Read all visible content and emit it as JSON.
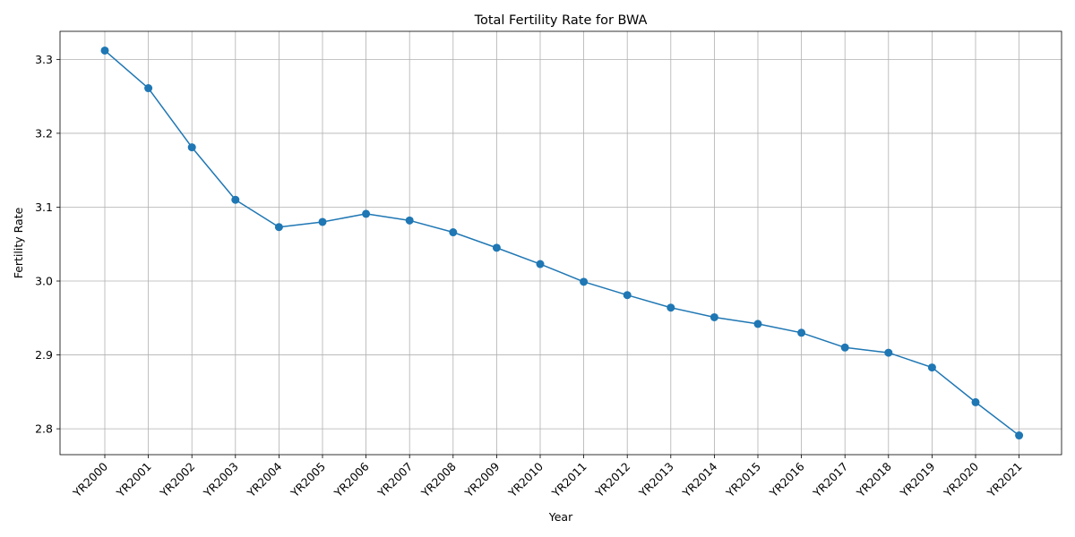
{
  "chart_data": {
    "type": "line",
    "title": "Total Fertility Rate for BWA",
    "xlabel": "Year",
    "ylabel": "Fertility Rate",
    "categories": [
      "YR2000",
      "YR2001",
      "YR2002",
      "YR2003",
      "YR2004",
      "YR2005",
      "YR2006",
      "YR2007",
      "YR2008",
      "YR2009",
      "YR2010",
      "YR2011",
      "YR2012",
      "YR2013",
      "YR2014",
      "YR2015",
      "YR2016",
      "YR2017",
      "YR2018",
      "YR2019",
      "YR2020",
      "YR2021"
    ],
    "series": [
      {
        "values": [
          3.312,
          3.261,
          3.181,
          3.11,
          3.073,
          3.08,
          3.091,
          3.082,
          3.066,
          3.045,
          3.023,
          2.999,
          2.981,
          2.964,
          2.951,
          2.942,
          2.93,
          2.91,
          2.903,
          2.883,
          2.836,
          2.791
        ],
        "color": "#1f77b4",
        "marker": "circle"
      }
    ],
    "yticks": [
      "2.8",
      "2.9",
      "3.0",
      "3.1",
      "3.2",
      "3.3"
    ],
    "ylim": [
      2.765,
      3.338
    ],
    "grid": true,
    "legend": "none"
  }
}
